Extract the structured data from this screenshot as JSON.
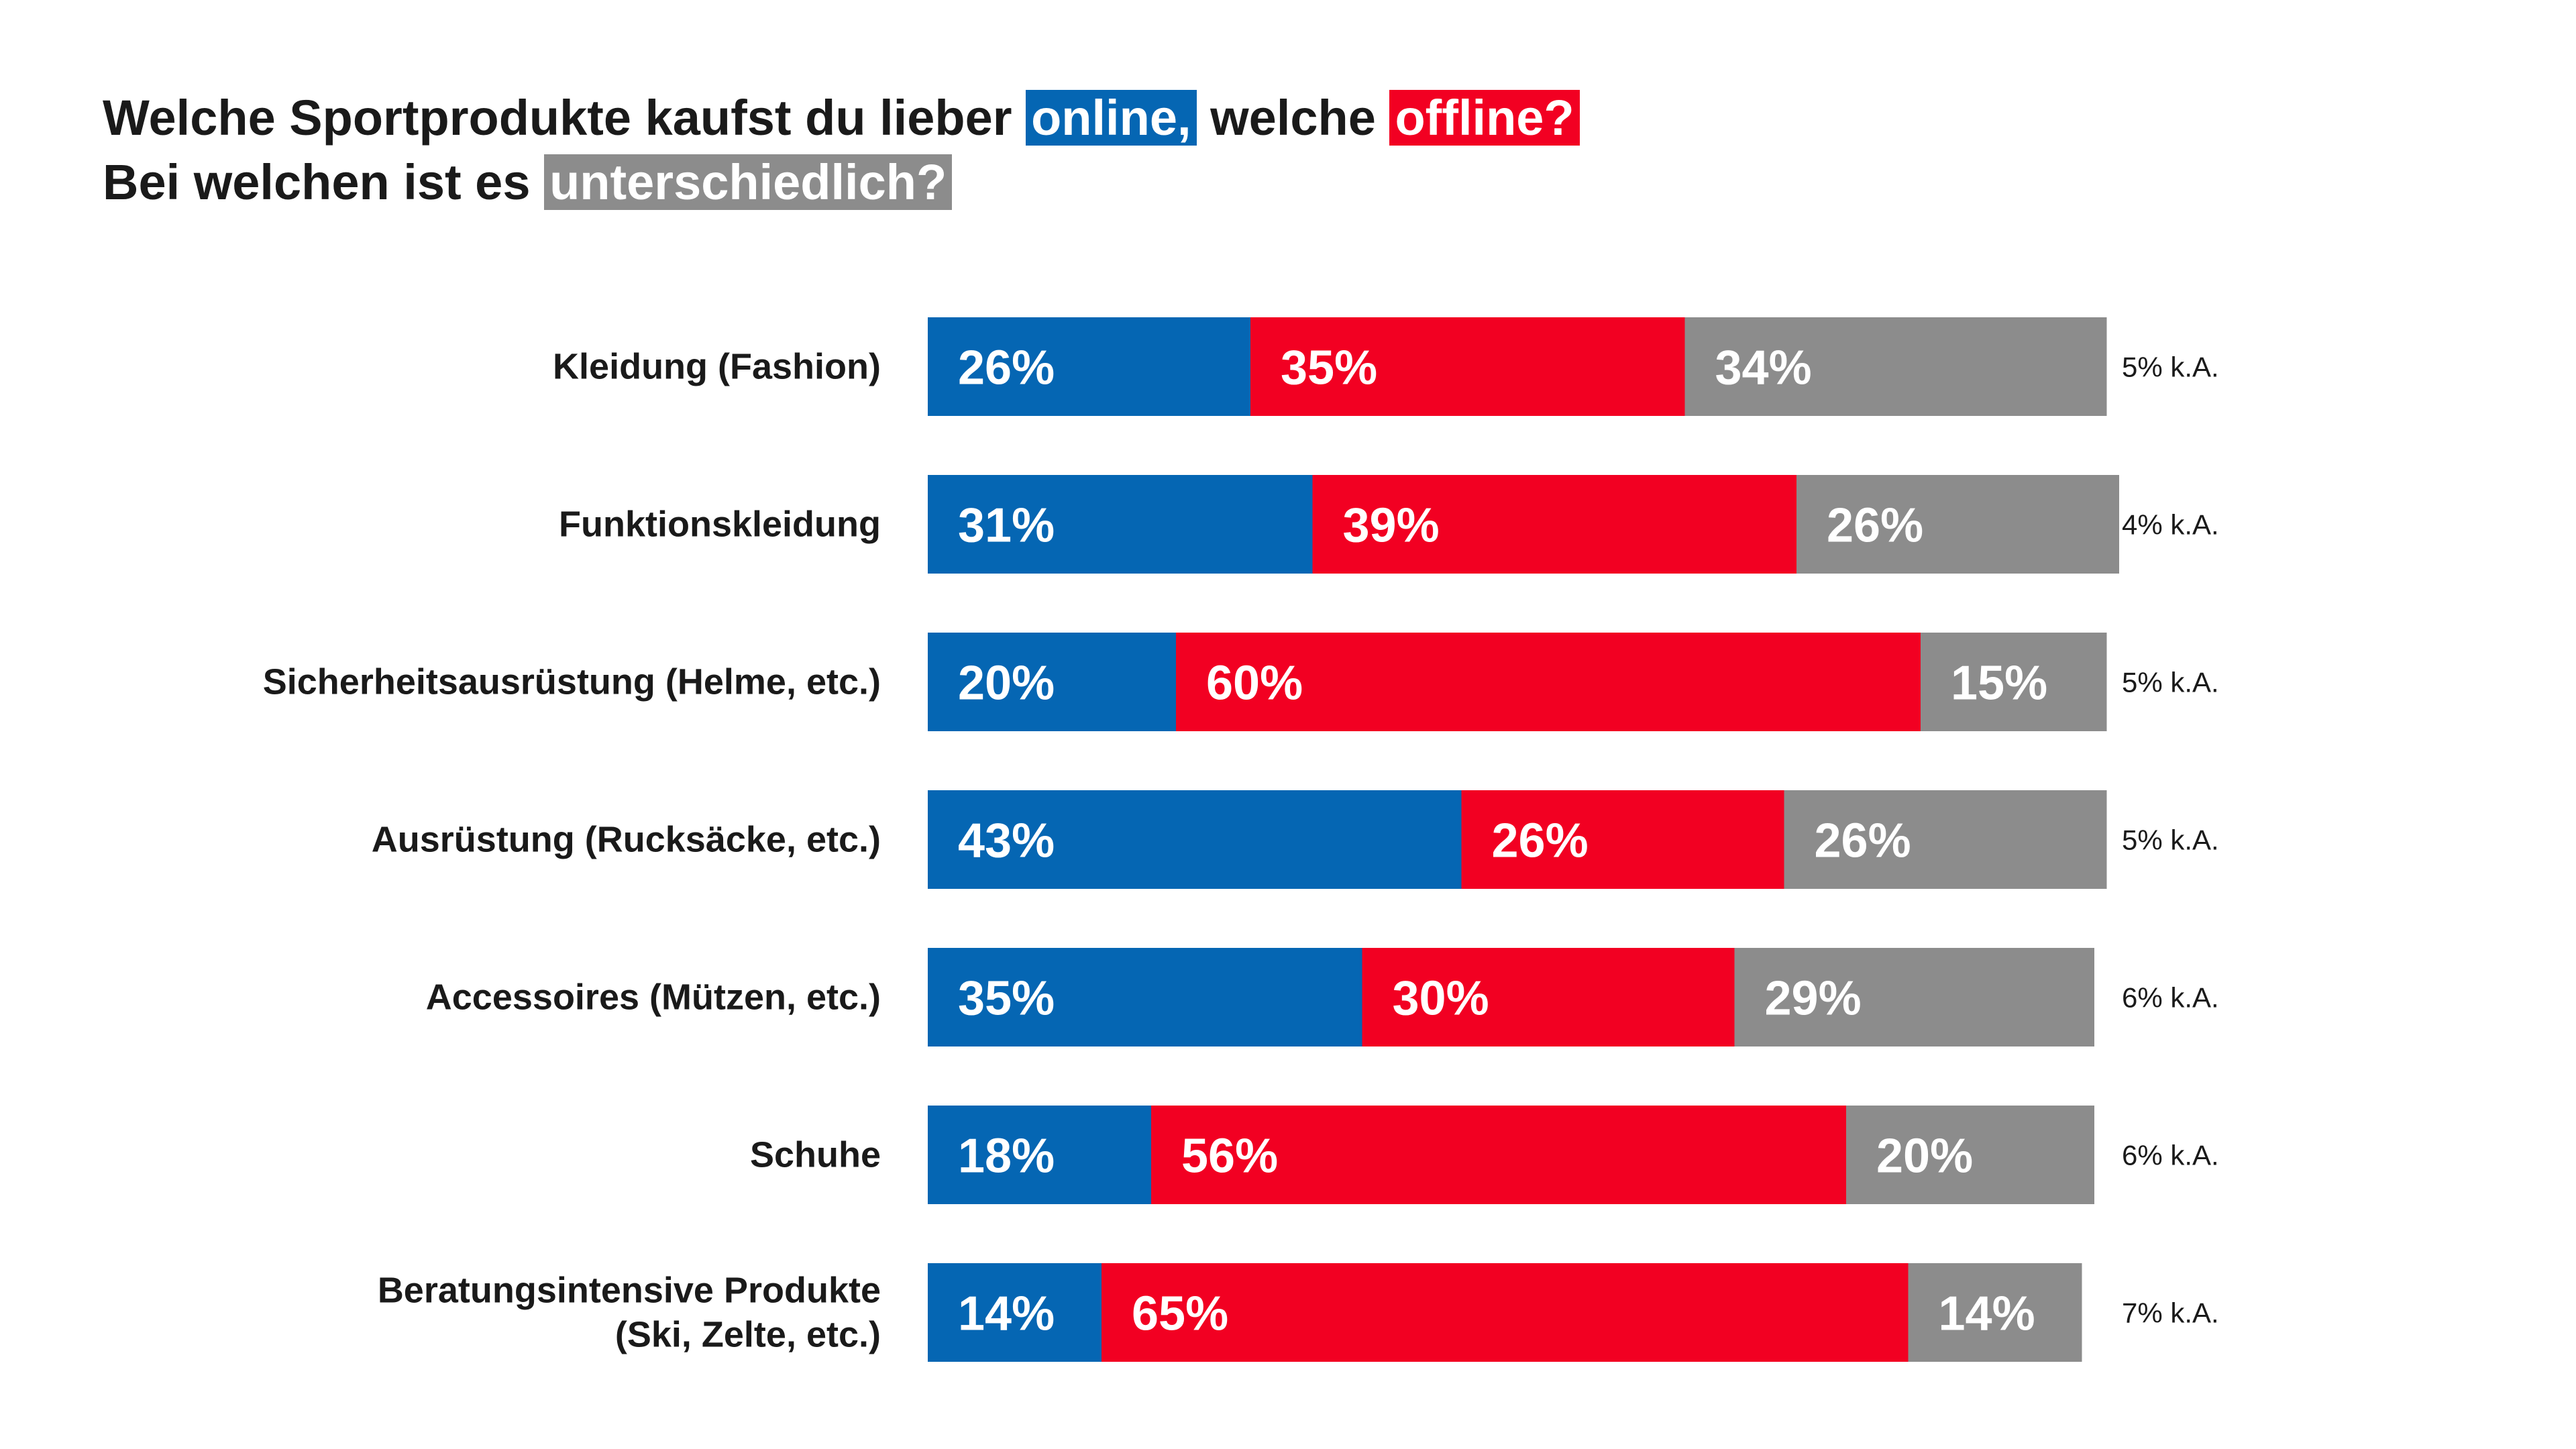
{
  "title": {
    "line1_pre": "Welche Sportprodukte kaufst du lieber",
    "online": "online,",
    "line1_mid": "welche",
    "offline": "offline?",
    "line2_pre": "Bei welchen ist es",
    "different": "unterschiedlich?"
  },
  "chart_data": {
    "type": "bar",
    "orientation": "horizontal-stacked",
    "categories": [
      [
        "Kleidung (Fashion)"
      ],
      [
        "Funktionskleidung"
      ],
      [
        "Sicherheitsausrüstung (Helme, etc.)"
      ],
      [
        "Ausrüstung (Rucksäcke, etc.)"
      ],
      [
        "Accessoires (Mützen, etc.)"
      ],
      [
        "Schuhe"
      ],
      [
        "Beratungsintensive Produkte",
        "(Ski, Zelte, etc.)"
      ]
    ],
    "series": [
      {
        "key": "online",
        "color": "#0566b3",
        "values": [
          26,
          31,
          20,
          43,
          35,
          18,
          14
        ],
        "labels": [
          "26%",
          "31%",
          "20%",
          "43%",
          "35%",
          "18%",
          "14%"
        ]
      },
      {
        "key": "offline",
        "color": "#f20022",
        "values": [
          35,
          39,
          60,
          26,
          30,
          56,
          65
        ],
        "labels": [
          "35%",
          "39%",
          "60%",
          "26%",
          "30%",
          "56%",
          "65%"
        ]
      },
      {
        "key": "unterschiedlich",
        "color": "#8c8c8c",
        "values": [
          34,
          26,
          15,
          26,
          29,
          20,
          14
        ],
        "labels": [
          "34%",
          "26%",
          "15%",
          "26%",
          "29%",
          "20%",
          "14%"
        ]
      }
    ],
    "no_answer": [
      "5% k.A.",
      "4% k.A.",
      "5% k.A.",
      "5% k.A.",
      "6% k.A.",
      "6% k.A.",
      "7% k.A."
    ],
    "unit": "%"
  }
}
